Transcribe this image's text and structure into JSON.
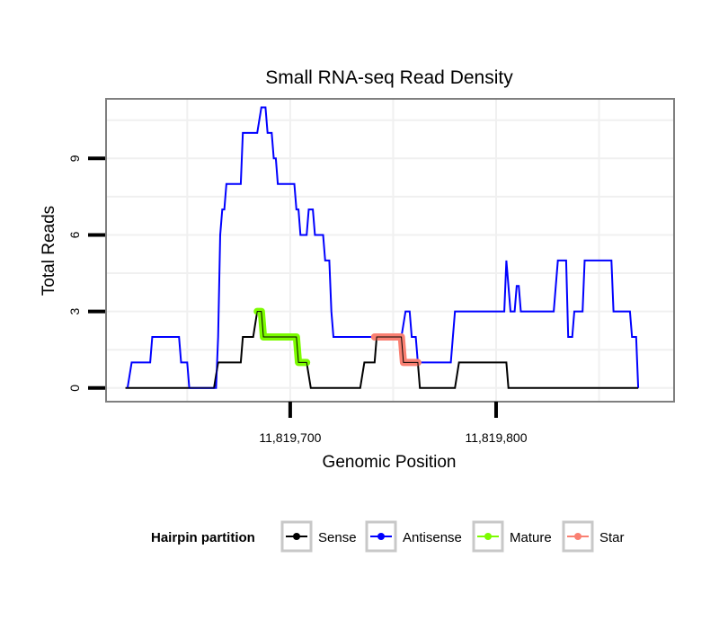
{
  "chart_data": {
    "type": "line",
    "title": "Small RNA-seq Read Density",
    "xlabel": "Genomic Position",
    "ylabel": "Total Reads",
    "xlim": [
      11819611,
      11819886
    ],
    "ylim": [
      -0.5,
      11.3
    ],
    "x_ticks": [
      11819700,
      11819800
    ],
    "x_tick_labels": [
      "11,819,700",
      "11,819,800"
    ],
    "y_ticks": [
      0,
      3,
      6,
      9
    ],
    "y_tick_labels": [
      "0",
      "3",
      "6",
      "9"
    ],
    "grid": true,
    "legend": {
      "title": "Hairpin partition",
      "position": "bottom",
      "entries": [
        {
          "name": "Sense",
          "color": "#000000"
        },
        {
          "name": "Antisense",
          "color": "#0000ff"
        },
        {
          "name": "Mature",
          "color": "#7cfc00"
        },
        {
          "name": "Star",
          "color": "#fa8072"
        }
      ]
    },
    "series": [
      {
        "name": "Sense",
        "color": "#000000",
        "points": [
          [
            11819620,
            0
          ],
          [
            11819663,
            0
          ],
          [
            11819665,
            1
          ],
          [
            11819676,
            1
          ],
          [
            11819677,
            2
          ],
          [
            11819682,
            2
          ],
          [
            11819684,
            3
          ],
          [
            11819686,
            3
          ],
          [
            11819687,
            2
          ],
          [
            11819703,
            2
          ],
          [
            11819704,
            1
          ],
          [
            11819708,
            1
          ],
          [
            11819710,
            0
          ],
          [
            11819734,
            0
          ],
          [
            11819736,
            1
          ],
          [
            11819741,
            1
          ],
          [
            11819742,
            2
          ],
          [
            11819754,
            2
          ],
          [
            11819755,
            1
          ],
          [
            11819762,
            1
          ],
          [
            11819763,
            0
          ],
          [
            11819780,
            0
          ],
          [
            11819782,
            1
          ],
          [
            11819805,
            1
          ],
          [
            11819806,
            0
          ],
          [
            11819869,
            0
          ]
        ]
      },
      {
        "name": "Antisense",
        "color": "#0000ff",
        "points": [
          [
            11819621,
            0
          ],
          [
            11819623,
            1
          ],
          [
            11819632,
            1
          ],
          [
            11819633,
            2
          ],
          [
            11819646,
            2
          ],
          [
            11819647,
            1
          ],
          [
            11819650,
            1
          ],
          [
            11819651,
            0
          ],
          [
            11819664,
            0
          ],
          [
            11819665,
            2
          ],
          [
            11819666,
            6
          ],
          [
            11819667,
            7
          ],
          [
            11819668,
            7
          ],
          [
            11819669,
            8
          ],
          [
            11819676,
            8
          ],
          [
            11819677,
            10
          ],
          [
            11819684,
            10
          ],
          [
            11819686,
            11
          ],
          [
            11819688,
            11
          ],
          [
            11819689,
            10
          ],
          [
            11819691,
            10
          ],
          [
            11819692,
            9
          ],
          [
            11819693,
            9
          ],
          [
            11819694,
            8
          ],
          [
            11819702,
            8
          ],
          [
            11819703,
            7
          ],
          [
            11819704,
            7
          ],
          [
            11819705,
            6
          ],
          [
            11819708,
            6
          ],
          [
            11819709,
            7
          ],
          [
            11819711,
            7
          ],
          [
            11819712,
            6
          ],
          [
            11819716,
            6
          ],
          [
            11819717,
            5
          ],
          [
            11819719,
            5
          ],
          [
            11819720,
            3
          ],
          [
            11819721,
            2
          ],
          [
            11819754,
            2
          ],
          [
            11819756,
            3
          ],
          [
            11819758,
            3
          ],
          [
            11819759,
            2
          ],
          [
            11819761,
            2
          ],
          [
            11819762,
            1
          ],
          [
            11819778,
            1
          ],
          [
            11819780,
            3
          ],
          [
            11819804,
            3
          ],
          [
            11819805,
            5
          ],
          [
            11819807,
            3
          ],
          [
            11819809,
            3
          ],
          [
            11819810,
            4
          ],
          [
            11819811,
            4
          ],
          [
            11819812,
            3
          ],
          [
            11819828,
            3
          ],
          [
            11819829,
            4
          ],
          [
            11819830,
            5
          ],
          [
            11819834,
            5
          ],
          [
            11819835,
            2
          ],
          [
            11819837,
            2
          ],
          [
            11819838,
            3
          ],
          [
            11819842,
            3
          ],
          [
            11819843,
            5
          ],
          [
            11819856,
            5
          ],
          [
            11819857,
            3
          ],
          [
            11819865,
            3
          ],
          [
            11819866,
            2
          ],
          [
            11819868,
            2
          ],
          [
            11819869,
            0
          ]
        ]
      },
      {
        "name": "Mature",
        "color": "#7cfc00",
        "points": [
          [
            11819684,
            3
          ],
          [
            11819686,
            3
          ],
          [
            11819687,
            2
          ],
          [
            11819703,
            2
          ],
          [
            11819704,
            1
          ],
          [
            11819708,
            1
          ]
        ]
      },
      {
        "name": "Star",
        "color": "#fa8072",
        "points": [
          [
            11819741,
            2
          ],
          [
            11819754,
            2
          ],
          [
            11819755,
            1
          ],
          [
            11819762,
            1
          ]
        ]
      }
    ]
  }
}
